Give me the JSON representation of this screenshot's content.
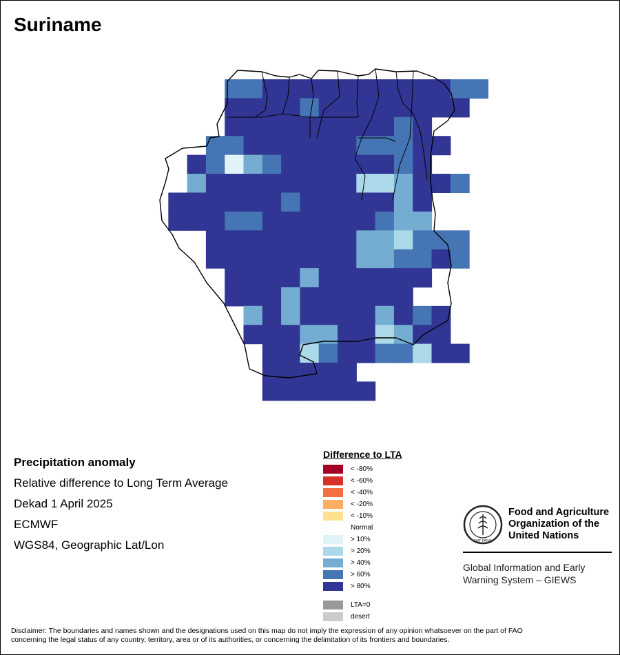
{
  "title": "Suriname",
  "info": {
    "heading": "Precipitation anomaly",
    "line1": "Relative difference to Long Term Average",
    "line2": "Dekad 1 April 2025",
    "line3": "ECMWF",
    "line4": "WGS84, Geographic Lat/Lon"
  },
  "legend": {
    "title": "Difference to LTA",
    "items": [
      {
        "label": "< -80%",
        "color": "#a50026"
      },
      {
        "label": "< -60%",
        "color": "#d73027"
      },
      {
        "label": "< -40%",
        "color": "#f46d43"
      },
      {
        "label": "< -20%",
        "color": "#fdae61"
      },
      {
        "label": "< -10%",
        "color": "#fee090"
      },
      {
        "label": "Normal",
        "color": "#ffffff"
      },
      {
        "label": "> 10%",
        "color": "#e0f3f8"
      },
      {
        "label": "> 20%",
        "color": "#abd9e9"
      },
      {
        "label": "> 40%",
        "color": "#74add1"
      },
      {
        "label": "> 60%",
        "color": "#4575b4"
      },
      {
        "label": "> 80%",
        "color": "#313695"
      }
    ],
    "extra": [
      {
        "label": "LTA=0",
        "color": "#999999"
      },
      {
        "label": "desert",
        "color": "#cccccc"
      }
    ]
  },
  "fao": {
    "name_line1": "Food and Agriculture",
    "name_line2": "Organization of the",
    "name_line3": "United Nations",
    "giews_line1": "Global Information and Early",
    "giews_line2": "Warning System – GIEWS"
  },
  "disclaimer": {
    "line1": "Disclaimer: The boundaries and names shown and the designations used on this map do not imply the expression of any opinion whatsoever on the part of FAO",
    "line2": "concerning the legal status of any country, territory, area or of its authorities, or concerning the delimitation of its frontiers and boundaries."
  },
  "map_grid": {
    "colors": {
      "0": "#ffffff",
      "1": "#e0f3f8",
      "2": "#abd9e9",
      "3": "#74add1",
      "4": "#4575b4",
      "5": "#313695"
    },
    "rows": [
      "....44555555555544",
      "....5555455555555.",
      "....55555555545...",
      "...4455555544455..",
      "..5413455555545...",
      "..355555555223554.",
      ".55555545555535...",
      ".55544555555433...",
      "...55555555332444.",
      "...55555555334454.",
      "....55553555555...",
      "....5553555555....",
      ".....35355553545..",
      ".....55533552355..",
      "......55245544255.",
      "......55555......",
      "......555555......"
    ]
  }
}
